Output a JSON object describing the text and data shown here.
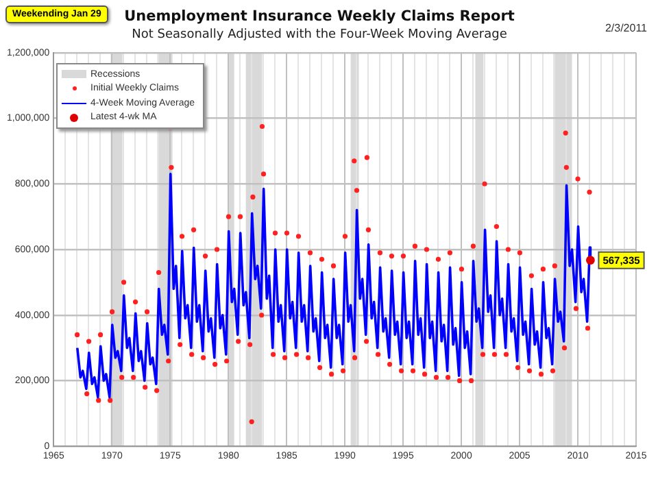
{
  "chart_data": {
    "type": "line",
    "title": "Unemployment Insurance Weekly Claims Report",
    "subtitle": "Not Seasonally Adjusted with the Four-Week Moving Average",
    "annotations": [
      "Weekending Jan 29",
      "2/3/2011"
    ],
    "xlim": [
      1965,
      2015
    ],
    "xticks": [
      1965,
      {
        "value": 1966,
        "label": null
      },
      {
        "value": 1967,
        "label": null
      },
      {
        "value": 1968,
        "label": null
      },
      {
        "value": 1969,
        "label": null
      },
      1970,
      {
        "value": 1971,
        "label": null
      },
      {
        "value": 1972,
        "label": null
      },
      {
        "value": 1973,
        "label": null
      },
      {
        "value": 1974,
        "label": null
      },
      1975,
      {
        "value": 1976,
        "label": null
      },
      {
        "value": 1977,
        "label": null
      },
      {
        "value": 1978,
        "label": null
      },
      {
        "value": 1979,
        "label": null
      },
      1980,
      {
        "value": 1981,
        "label": null
      },
      {
        "value": 1982,
        "label": null
      },
      {
        "value": 1983,
        "label": null
      },
      {
        "value": 1984,
        "label": null
      },
      1985,
      {
        "value": 1986,
        "label": null
      },
      {
        "value": 1987,
        "label": null
      },
      {
        "value": 1988,
        "label": null
      },
      {
        "value": 1989,
        "label": null
      },
      1990,
      {
        "value": 1991,
        "label": null
      },
      {
        "value": 1992,
        "label": null
      },
      {
        "value": 1993,
        "label": null
      },
      {
        "value": 1994,
        "label": null
      },
      1995,
      {
        "value": 1996,
        "label": null
      },
      {
        "value": 1997,
        "label": null
      },
      {
        "value": 1998,
        "label": null
      },
      {
        "value": 1999,
        "label": null
      },
      2000,
      {
        "value": 2001,
        "label": null
      },
      {
        "value": 2002,
        "label": null
      },
      {
        "value": 2003,
        "label": null
      },
      {
        "value": 2004,
        "label": null
      },
      2005,
      {
        "value": 2006,
        "label": null
      },
      {
        "value": 2007,
        "label": null
      },
      {
        "value": 2008,
        "label": null
      },
      {
        "value": 2009,
        "label": null
      },
      2010,
      {
        "value": 2011,
        "label": null
      },
      {
        "value": 2012,
        "label": null
      },
      {
        "value": 2013,
        "label": null
      },
      {
        "value": 2014,
        "label": null
      },
      2015
    ],
    "ylim": [
      0,
      1200000
    ],
    "yticks": [
      0,
      {
        "value": 200000,
        "label": "200,000"
      },
      {
        "value": 400000,
        "label": "400,000"
      },
      {
        "value": 600000,
        "label": "600,000"
      },
      {
        "value": 800000,
        "label": "800,000"
      },
      {
        "value": 1000000,
        "label": "1,000,000"
      },
      {
        "value": 1200000,
        "label": "1,200,000"
      }
    ],
    "grid": true,
    "legend": "top left",
    "bands": [
      {
        "axis": "x",
        "from": 1969.9,
        "to": 1970.9,
        "label": "Recessions",
        "color": "#d9d9d9"
      },
      {
        "axis": "x",
        "from": 1973.9,
        "to": 1975.2,
        "color": "#d9d9d9"
      },
      {
        "axis": "x",
        "from": 1980.0,
        "to": 1980.5,
        "color": "#d9d9d9"
      },
      {
        "axis": "x",
        "from": 1981.5,
        "to": 1982.9,
        "color": "#d9d9d9"
      },
      {
        "axis": "x",
        "from": 1990.5,
        "to": 1991.2,
        "color": "#d9d9d9"
      },
      {
        "axis": "x",
        "from": 2001.2,
        "to": 2001.9,
        "color": "#d9d9d9"
      },
      {
        "axis": "x",
        "from": 2007.9,
        "to": 2009.5,
        "color": "#d9d9d9"
      }
    ],
    "series": [
      {
        "name": "Initial Weekly Claims",
        "type": "scatter",
        "marker": "circle",
        "color": "#ff2020",
        "x": [
          1967.02,
          1967.85,
          1968.02,
          1968.85,
          1969.02,
          1969.85,
          1970.02,
          1970.85,
          1971.02,
          1971.85,
          1972.02,
          1972.85,
          1973.02,
          1973.85,
          1974.02,
          1974.85,
          1975.0,
          1975.1,
          1975.85,
          1976.02,
          1976.85,
          1977.02,
          1977.85,
          1978.02,
          1978.85,
          1979.02,
          1979.85,
          1980.02,
          1980.85,
          1981.02,
          1981.85,
          1982.0,
          1982.1,
          1982.85,
          1982.9,
          1983.02,
          1983.85,
          1984.02,
          1984.85,
          1985.02,
          1985.85,
          1986.02,
          1986.85,
          1987.02,
          1987.85,
          1988.02,
          1988.85,
          1989.02,
          1989.85,
          1990.02,
          1990.8,
          1990.85,
          1991.02,
          1991.85,
          1991.9,
          1992.02,
          1992.85,
          1993.02,
          1993.85,
          1994.02,
          1994.85,
          1995.02,
          1995.85,
          1996.02,
          1996.85,
          1997.02,
          1997.85,
          1998.02,
          1998.85,
          1999.02,
          1999.85,
          2000.02,
          2000.85,
          2001.02,
          2001.85,
          2002.0,
          2002.85,
          2003.02,
          2003.85,
          2004.02,
          2004.85,
          2005.02,
          2005.85,
          2006.02,
          2006.85,
          2007.02,
          2007.85,
          2008.02,
          2008.85,
          2008.95,
          2009.02,
          2009.85,
          2010.0,
          2010.85,
          2011.0
        ],
        "values": [
          340000,
          160000,
          320000,
          140000,
          340000,
          140000,
          410000,
          210000,
          500000,
          210000,
          440000,
          180000,
          410000,
          170000,
          530000,
          260000,
          970000,
          850000,
          310000,
          640000,
          280000,
          660000,
          270000,
          580000,
          250000,
          600000,
          260000,
          700000,
          320000,
          700000,
          310000,
          75000,
          760000,
          400000,
          975000,
          830000,
          280000,
          650000,
          270000,
          650000,
          280000,
          640000,
          270000,
          590000,
          240000,
          570000,
          220000,
          550000,
          230000,
          640000,
          870000,
          270000,
          780000,
          320000,
          880000,
          660000,
          280000,
          590000,
          250000,
          580000,
          230000,
          580000,
          230000,
          610000,
          220000,
          600000,
          210000,
          570000,
          210000,
          590000,
          200000,
          540000,
          200000,
          610000,
          280000,
          800000,
          280000,
          670000,
          280000,
          600000,
          240000,
          590000,
          230000,
          520000,
          220000,
          540000,
          230000,
          550000,
          300000,
          955000,
          850000,
          420000,
          815000,
          360000,
          775000
        ]
      },
      {
        "name": "4-Week Moving Average",
        "type": "line",
        "color": "#0000ff",
        "x": [
          1967.03,
          1967.3,
          1967.5,
          1967.8,
          1968.03,
          1968.3,
          1968.5,
          1968.8,
          1969.03,
          1969.3,
          1969.5,
          1969.8,
          1970.03,
          1970.3,
          1970.5,
          1970.8,
          1971.03,
          1971.3,
          1971.5,
          1971.8,
          1972.03,
          1972.3,
          1972.5,
          1972.8,
          1973.03,
          1973.3,
          1973.5,
          1973.8,
          1974.03,
          1974.3,
          1974.5,
          1974.8,
          1975.03,
          1975.3,
          1975.5,
          1975.8,
          1976.03,
          1976.3,
          1976.5,
          1976.8,
          1977.03,
          1977.3,
          1977.5,
          1977.8,
          1978.03,
          1978.3,
          1978.5,
          1978.8,
          1979.03,
          1979.3,
          1979.5,
          1979.8,
          1980.03,
          1980.3,
          1980.5,
          1980.8,
          1981.03,
          1981.3,
          1981.5,
          1981.8,
          1982.03,
          1982.3,
          1982.5,
          1982.8,
          1983.03,
          1983.3,
          1983.5,
          1983.8,
          1984.03,
          1984.3,
          1984.5,
          1984.8,
          1985.03,
          1985.3,
          1985.5,
          1985.8,
          1986.03,
          1986.3,
          1986.5,
          1986.8,
          1987.03,
          1987.3,
          1987.5,
          1987.8,
          1988.03,
          1988.3,
          1988.5,
          1988.8,
          1989.03,
          1989.3,
          1989.5,
          1989.8,
          1990.03,
          1990.3,
          1990.5,
          1990.8,
          1991.03,
          1991.3,
          1991.5,
          1991.8,
          1992.03,
          1992.3,
          1992.5,
          1992.8,
          1993.03,
          1993.3,
          1993.5,
          1993.8,
          1994.03,
          1994.3,
          1994.5,
          1994.8,
          1995.03,
          1995.3,
          1995.5,
          1995.8,
          1996.03,
          1996.3,
          1996.5,
          1996.8,
          1997.03,
          1997.3,
          1997.5,
          1997.8,
          1998.03,
          1998.3,
          1998.5,
          1998.8,
          1999.03,
          1999.3,
          1999.5,
          1999.8,
          2000.03,
          2000.3,
          2000.5,
          2000.8,
          2001.03,
          2001.3,
          2001.5,
          2001.8,
          2002.03,
          2002.3,
          2002.5,
          2002.8,
          2003.03,
          2003.3,
          2003.5,
          2003.8,
          2004.03,
          2004.3,
          2004.5,
          2004.8,
          2005.03,
          2005.3,
          2005.5,
          2005.8,
          2006.03,
          2006.3,
          2006.5,
          2006.8,
          2007.03,
          2007.3,
          2007.5,
          2007.8,
          2008.03,
          2008.3,
          2008.5,
          2008.8,
          2009.03,
          2009.3,
          2009.5,
          2009.8,
          2010.03,
          2010.3,
          2010.5,
          2010.8,
          2011.02,
          2011.08
        ],
        "values": [
          300000,
          210000,
          230000,
          175000,
          285000,
          190000,
          210000,
          150000,
          305000,
          200000,
          220000,
          150000,
          370000,
          270000,
          290000,
          230000,
          460000,
          300000,
          330000,
          230000,
          405000,
          260000,
          290000,
          200000,
          375000,
          250000,
          270000,
          190000,
          480000,
          340000,
          370000,
          280000,
          830000,
          480000,
          550000,
          330000,
          595000,
          390000,
          430000,
          300000,
          605000,
          380000,
          430000,
          290000,
          535000,
          350000,
          390000,
          270000,
          555000,
          360000,
          400000,
          280000,
          655000,
          440000,
          480000,
          340000,
          650000,
          430000,
          470000,
          330000,
          710000,
          510000,
          550000,
          420000,
          785000,
          450000,
          520000,
          300000,
          600000,
          380000,
          430000,
          290000,
          600000,
          390000,
          440000,
          300000,
          590000,
          380000,
          430000,
          290000,
          550000,
          350000,
          390000,
          260000,
          530000,
          330000,
          370000,
          240000,
          510000,
          330000,
          370000,
          250000,
          590000,
          380000,
          430000,
          290000,
          720000,
          450000,
          510000,
          340000,
          615000,
          390000,
          440000,
          300000,
          545000,
          350000,
          390000,
          270000,
          535000,
          340000,
          380000,
          250000,
          530000,
          330000,
          380000,
          250000,
          565000,
          340000,
          390000,
          240000,
          555000,
          330000,
          380000,
          230000,
          530000,
          320000,
          370000,
          230000,
          545000,
          310000,
          360000,
          215000,
          500000,
          300000,
          350000,
          220000,
          565000,
          380000,
          420000,
          300000,
          660000,
          410000,
          460000,
          300000,
          625000,
          400000,
          450000,
          300000,
          555000,
          350000,
          390000,
          260000,
          545000,
          340000,
          380000,
          250000,
          480000,
          310000,
          350000,
          240000,
          500000,
          330000,
          360000,
          250000,
          510000,
          380000,
          410000,
          320000,
          795000,
          550000,
          600000,
          440000,
          670000,
          470000,
          510000,
          380000,
          606000,
          567335
        ]
      },
      {
        "name": "Latest 4-wk MA",
        "type": "scatter",
        "marker": "circle",
        "color": "#e00000",
        "x": [
          2011.08
        ],
        "values": [
          567335
        ],
        "value_labels": [
          "567,335"
        ]
      }
    ]
  }
}
